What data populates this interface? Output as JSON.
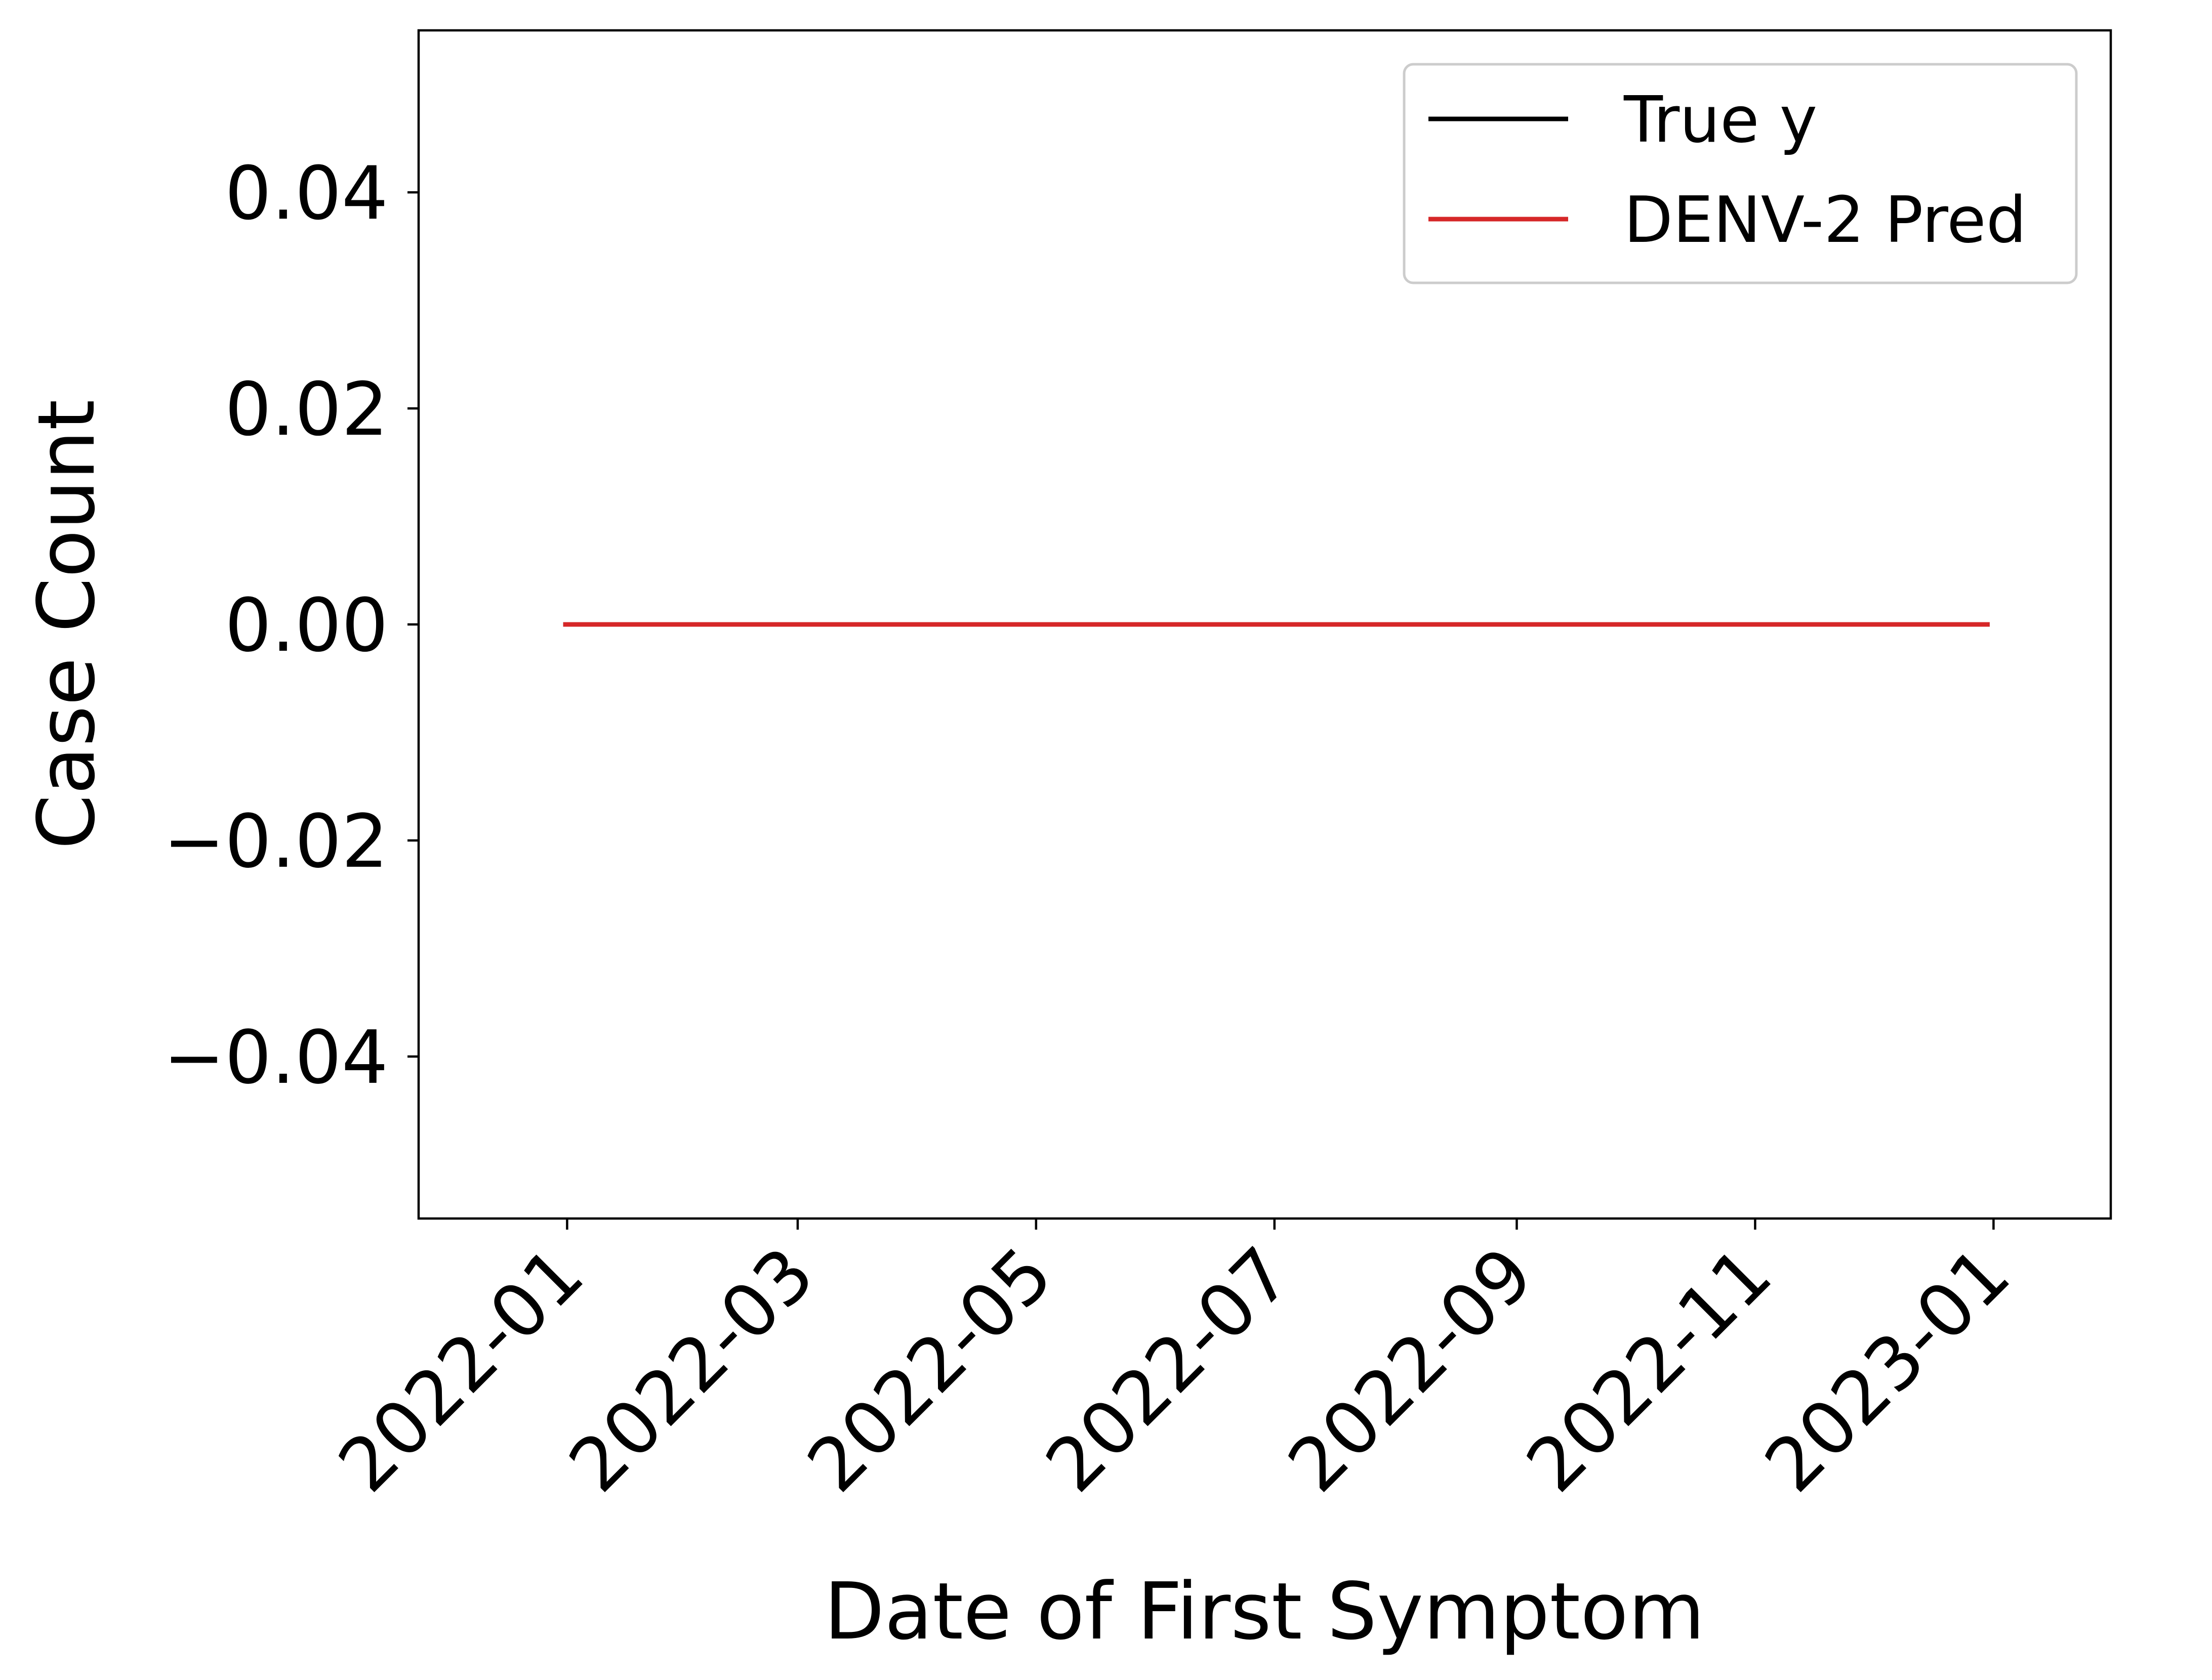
{
  "chart_data": {
    "type": "line",
    "title": "",
    "xlabel": "Date of First Symptom",
    "ylabel": "Case Count",
    "x_ticks": [
      "2022-01",
      "2022-03",
      "2022-05",
      "2022-07",
      "2022-09",
      "2022-11",
      "2023-01"
    ],
    "y_ticks": [
      "−0.04",
      "−0.02",
      "0.00",
      "0.02",
      "0.04"
    ],
    "y_tick_values": [
      -0.04,
      -0.02,
      0.0,
      0.02,
      0.04
    ],
    "xlim": [
      "2021-11-24",
      "2023-01-31"
    ],
    "ylim": [
      -0.055,
      0.055
    ],
    "grid": false,
    "legend_position": "top-right",
    "series": [
      {
        "name": "True y",
        "color": "#000000",
        "x": [
          "2021-12-31",
          "2022-12-31"
        ],
        "y": [
          0,
          0
        ]
      },
      {
        "name": "DENV-2 Pred",
        "color": "#d62728",
        "x": [
          "2021-12-31",
          "2022-12-31"
        ],
        "y": [
          0,
          0
        ]
      }
    ]
  }
}
